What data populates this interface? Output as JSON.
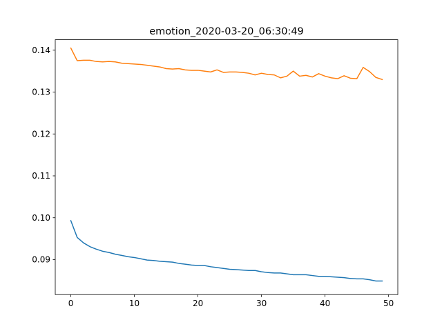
{
  "chart_data": {
    "type": "line",
    "title": "emotion_2020-03-20_06:30:49",
    "xlabel": "",
    "ylabel": "",
    "xlim": [
      -2.45,
      51.45
    ],
    "ylim": [
      0.08165,
      0.1425
    ],
    "xticks": [
      0,
      10,
      20,
      30,
      40,
      50
    ],
    "xtick_labels": [
      "0",
      "10",
      "20",
      "30",
      "40",
      "50"
    ],
    "yticks": [
      0.09,
      0.1,
      0.11,
      0.12,
      0.13,
      0.14
    ],
    "ytick_labels": [
      "0.09",
      "0.10",
      "0.11",
      "0.12",
      "0.13",
      "0.14"
    ],
    "grid": false,
    "legend": false,
    "series": [
      {
        "color": "#1f77b4",
        "x": [
          0,
          1,
          2,
          3,
          4,
          5,
          6,
          7,
          8,
          9,
          10,
          11,
          12,
          13,
          14,
          15,
          16,
          17,
          18,
          19,
          20,
          21,
          22,
          23,
          24,
          25,
          26,
          27,
          28,
          29,
          30,
          31,
          32,
          33,
          34,
          35,
          36,
          37,
          38,
          39,
          40,
          41,
          42,
          43,
          44,
          45,
          46,
          47,
          48,
          49
        ],
        "values": [
          0.0993,
          0.0953,
          0.094,
          0.0931,
          0.0925,
          0.092,
          0.0917,
          0.0913,
          0.091,
          0.0907,
          0.0905,
          0.0902,
          0.0899,
          0.0898,
          0.0896,
          0.0895,
          0.0894,
          0.0891,
          0.0889,
          0.0887,
          0.0886,
          0.0886,
          0.0883,
          0.0881,
          0.0879,
          0.0877,
          0.0876,
          0.0875,
          0.0874,
          0.0874,
          0.0871,
          0.0869,
          0.0868,
          0.0868,
          0.0866,
          0.0864,
          0.0864,
          0.0864,
          0.0862,
          0.086,
          0.086,
          0.0859,
          0.0858,
          0.0857,
          0.0855,
          0.0854,
          0.0854,
          0.0852,
          0.0849,
          0.0849
        ]
      },
      {
        "color": "#ff7f0e",
        "x": [
          0,
          1,
          2,
          3,
          4,
          5,
          6,
          7,
          8,
          9,
          10,
          11,
          12,
          13,
          14,
          15,
          16,
          17,
          18,
          19,
          20,
          21,
          22,
          23,
          24,
          25,
          26,
          27,
          28,
          29,
          30,
          31,
          32,
          33,
          34,
          35,
          36,
          37,
          38,
          39,
          40,
          41,
          42,
          43,
          44,
          45,
          46,
          47,
          48,
          49
        ],
        "values": [
          0.1405,
          0.1375,
          0.1376,
          0.1376,
          0.1373,
          0.1372,
          0.1373,
          0.1372,
          0.1369,
          0.1368,
          0.1367,
          0.1366,
          0.1364,
          0.1362,
          0.136,
          0.1356,
          0.1355,
          0.1356,
          0.1353,
          0.1352,
          0.1352,
          0.135,
          0.1348,
          0.1353,
          0.1347,
          0.1348,
          0.1348,
          0.1347,
          0.1345,
          0.1341,
          0.1345,
          0.1342,
          0.1341,
          0.1334,
          0.1338,
          0.135,
          0.1338,
          0.134,
          0.1336,
          0.1344,
          0.1338,
          0.1334,
          0.1332,
          0.1339,
          0.1333,
          0.1332,
          0.1359,
          0.1349,
          0.1335,
          0.133
        ]
      }
    ]
  }
}
